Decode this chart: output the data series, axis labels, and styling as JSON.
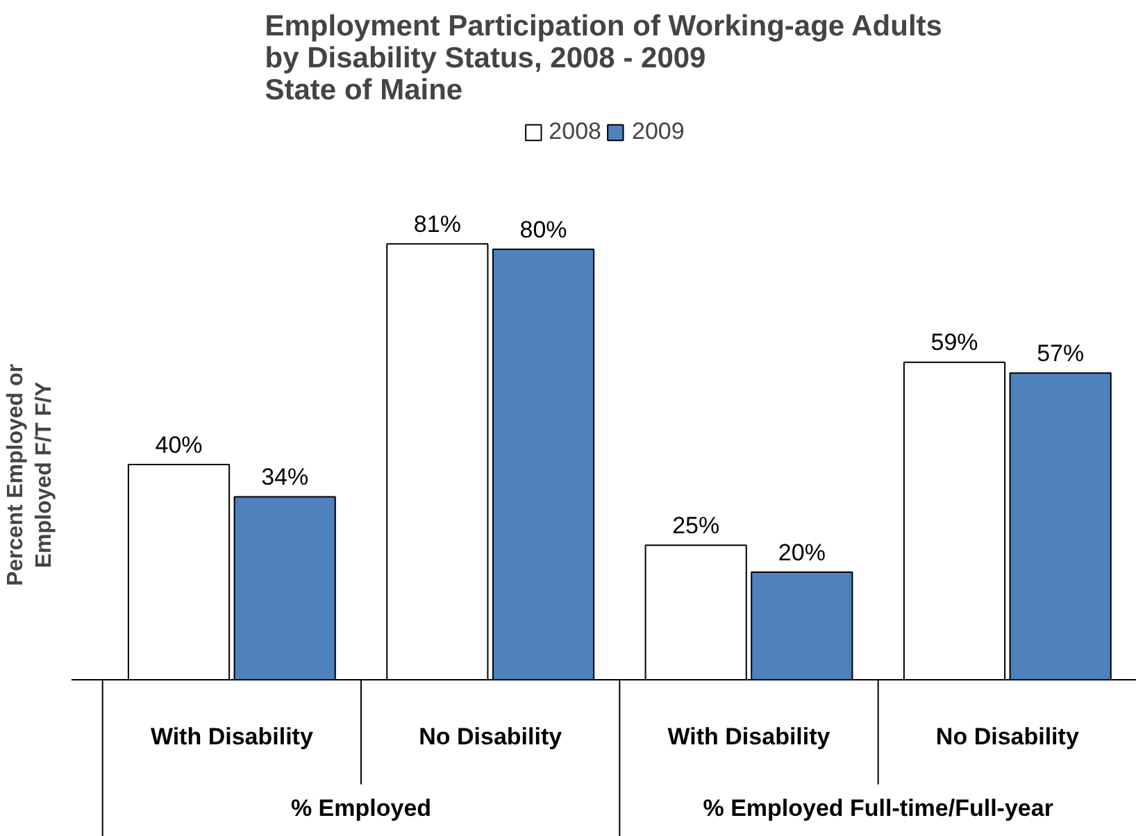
{
  "chart_data": {
    "type": "bar",
    "title": "Employment Participation of Working-age Adults\nby Disability Status, 2008 - 2009\nState of Maine",
    "ylabel": "Percent Employed or\nEmployed F/T F/Y",
    "categories": [
      "With Disability",
      "No Disability",
      "With Disability",
      "No Disability"
    ],
    "annotations": [
      "% Employed",
      "% Employed Full-time/Full-year"
    ],
    "series": [
      {
        "name": "2008",
        "color": "#ffffff",
        "values": [
          40,
          81,
          25,
          59
        ],
        "value_labels": [
          "40%",
          "81%",
          "25%",
          "59%"
        ]
      },
      {
        "name": "2009",
        "color": "#4f81bd",
        "values": [
          34,
          80,
          20,
          57
        ],
        "value_labels": [
          "34%",
          "80%",
          "20%",
          "57%"
        ]
      }
    ],
    "legend": "top",
    "grid": false
  }
}
